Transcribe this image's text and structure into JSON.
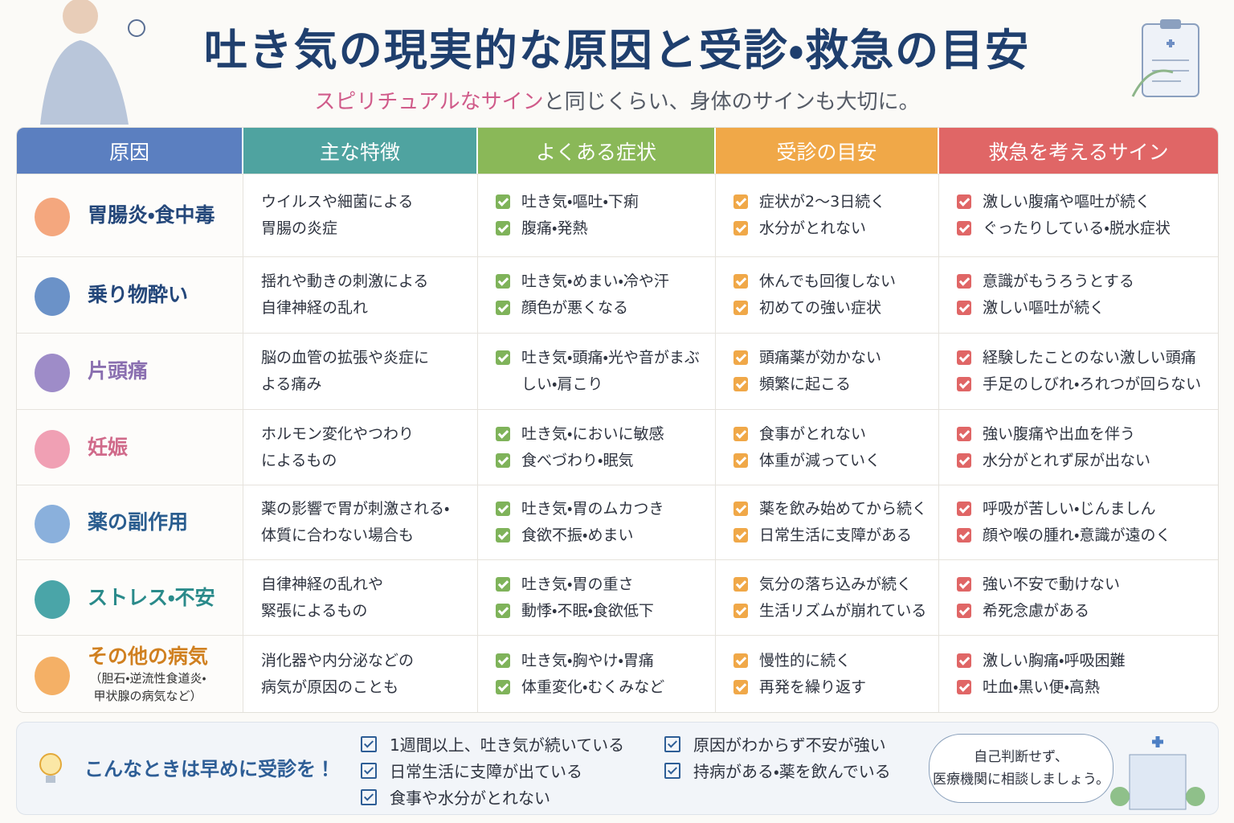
{
  "header": {
    "title": "吐き気の現実的な原因と受診・救急の目安",
    "subtitle_accent": "スピリチュアルなサイン",
    "subtitle_rest": "と同じくらい、身体のサインも大切に。"
  },
  "table": {
    "columns": [
      "原因",
      "主な特徴",
      "よくある症状",
      "受診の目安",
      "救急を考えるサイン"
    ],
    "rows": [
      {
        "cause": "胃腸炎・食中毒",
        "features": [
          "ウイルスや細菌による",
          "胃腸の炎症"
        ],
        "symptoms": [
          "吐き気・嘔吐・下痢",
          "腹痛・発熱"
        ],
        "visit": [
          "症状が2〜3日続く",
          "水分がとれない"
        ],
        "emergency": [
          "激しい腹痛や嘔吐が続く",
          "ぐったりしている・脱水症状"
        ]
      },
      {
        "cause": "乗り物酔い",
        "features": [
          "揺れや動きの刺激による",
          "自律神経の乱れ"
        ],
        "symptoms": [
          "吐き気・めまい・冷や汗",
          "顔色が悪くなる"
        ],
        "visit": [
          "休んでも回復しない",
          "初めての強い症状"
        ],
        "emergency": [
          "意識がもうろうとする",
          "激しい嘔吐が続く"
        ]
      },
      {
        "cause": "片頭痛",
        "features": [
          "脳の血管の拡張や炎症に",
          "よる痛み"
        ],
        "symptoms": [
          "吐き気・頭痛・光や音がまぶしい・肩こり"
        ],
        "visit": [
          "頭痛薬が効かない",
          "頻繁に起こる"
        ],
        "emergency": [
          "経験したことのない激しい頭痛",
          "手足のしびれ・ろれつが回らない"
        ]
      },
      {
        "cause": "妊娠",
        "features": [
          "ホルモン変化やつわり",
          "によるもの"
        ],
        "symptoms": [
          "吐き気・においに敏感",
          "食べづわり・眠気"
        ],
        "visit": [
          "食事がとれない",
          "体重が減っていく"
        ],
        "emergency": [
          "強い腹痛や出血を伴う",
          "水分がとれず尿が出ない"
        ]
      },
      {
        "cause": "薬の副作用",
        "features": [
          "薬の影響で胃が刺激される・",
          "体質に合わない場合も"
        ],
        "symptoms": [
          "吐き気・胃のムカつき",
          "食欲不振・めまい"
        ],
        "visit": [
          "薬を飲み始めてから続く",
          "日常生活に支障がある"
        ],
        "emergency": [
          "呼吸が苦しい・じんましん",
          "顔や喉の腫れ・意識が遠のく"
        ]
      },
      {
        "cause": "ストレス・不安",
        "features": [
          "自律神経の乱れや",
          "緊張によるもの"
        ],
        "symptoms": [
          "吐き気・胃の重さ",
          "動悸・不眠・食欲低下"
        ],
        "visit": [
          "気分の落ち込みが続く",
          "生活リズムが崩れている"
        ],
        "emergency": [
          "強い不安で動けない",
          "希死念慮がある"
        ]
      },
      {
        "cause": "その他の病気",
        "cause_note": [
          "（胆石・逆流性食道炎・",
          "甲状腺の病気など）"
        ],
        "features": [
          "消化器や内分泌などの",
          "病気が原因のことも"
        ],
        "symptoms": [
          "吐き気・胸やけ・胃痛",
          "体重変化・むくみなど"
        ],
        "visit": [
          "慢性的に続く",
          "再発を繰り返す"
        ],
        "emergency": [
          "激しい胸痛・呼吸困難",
          "吐血・黒い便・高熱"
        ]
      }
    ]
  },
  "footer": {
    "label": "こんなときは早めに受診を！",
    "items": [
      "1週間以上、吐き気が続いている",
      "日常生活に支障が出ている",
      "食事や水分がとれない",
      "原因がわからず不安が強い",
      "持病がある・薬を飲んでいる"
    ],
    "bubble": [
      "自己判断せず、",
      "医療機関に相談しましょう。"
    ]
  }
}
